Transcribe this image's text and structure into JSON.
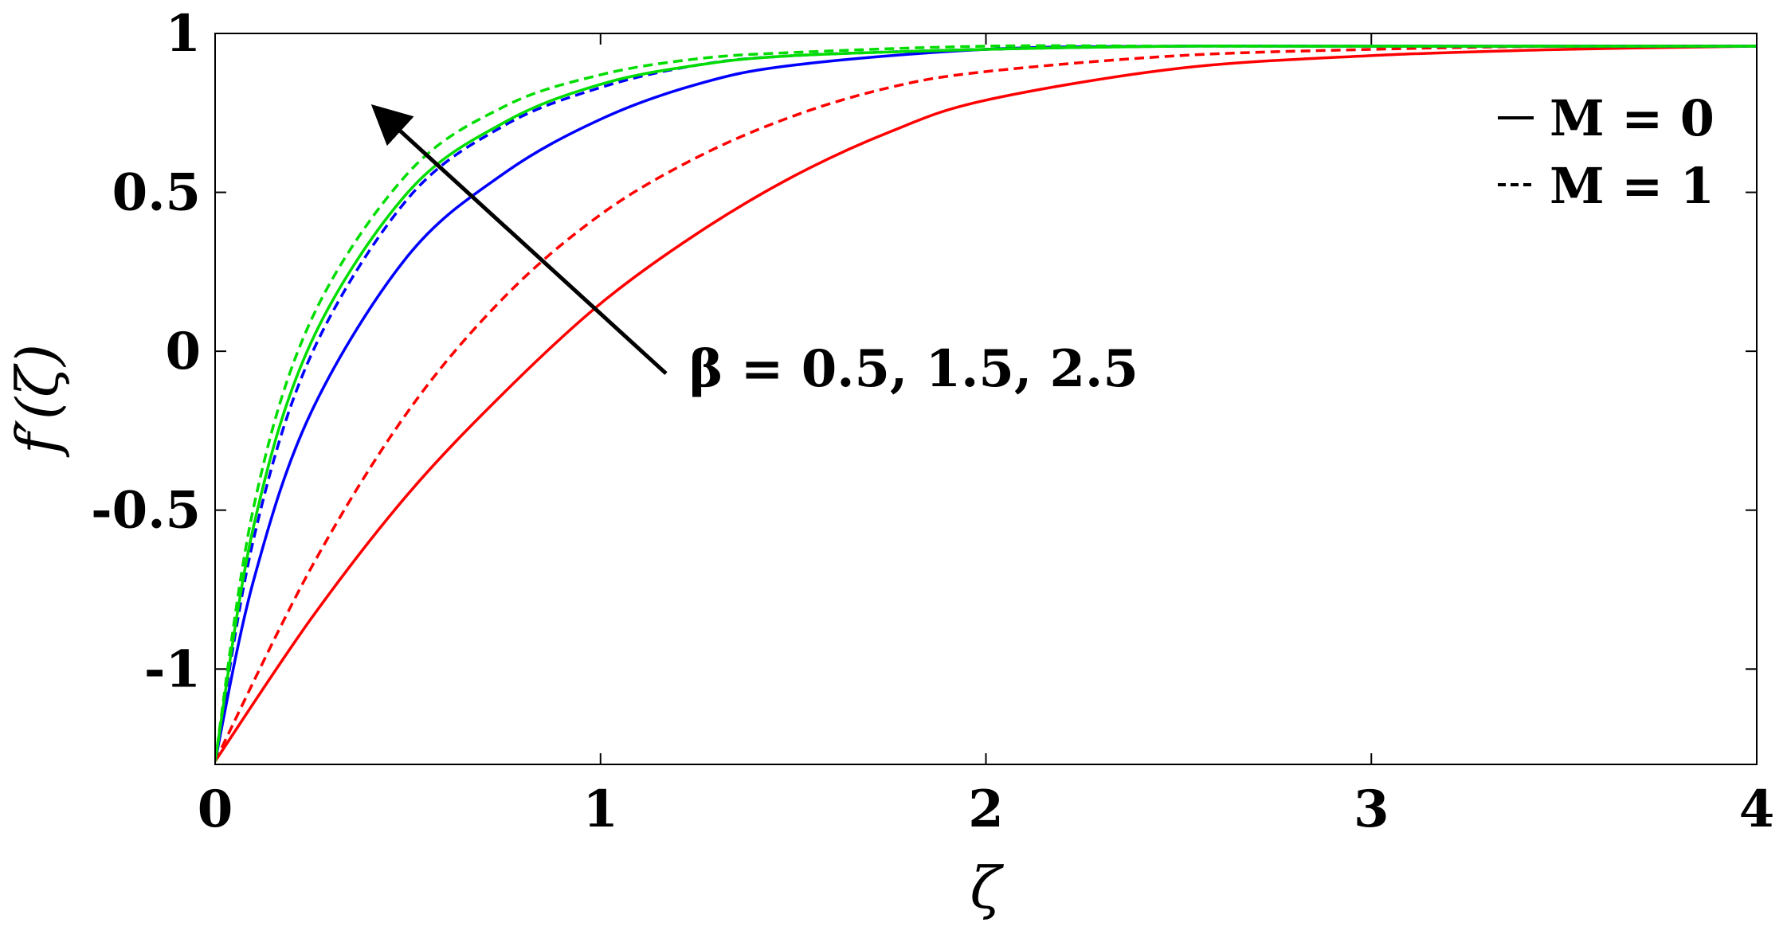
{
  "chart_data": {
    "type": "line",
    "title": "",
    "xlabel": "ζ",
    "ylabel": "f′(ζ)",
    "xlim": [
      0,
      4
    ],
    "ylim": [
      -1.3,
      1
    ],
    "xticks": [
      0,
      1,
      2,
      3,
      4
    ],
    "xtick_labels": [
      "0",
      "1",
      "2",
      "3",
      "4"
    ],
    "yticks": [
      -1,
      -0.5,
      0,
      0.5,
      1
    ],
    "ytick_labels": [
      "-1",
      "-0.5",
      "0",
      "0.5",
      "1"
    ],
    "grid": false,
    "legend": {
      "position": "top-right",
      "entries": [
        {
          "label": "M = 0",
          "style": "solid"
        },
        {
          "label": "M = 1",
          "style": "dashed"
        }
      ]
    },
    "annotation": {
      "text": "β = 0.5, 1.5, 2.5",
      "arrow_from": [
        1.17,
        -0.07
      ],
      "arrow_to": [
        0.42,
        0.76
      ]
    },
    "series": [
      {
        "beta": 0.5,
        "M": 0,
        "color": "#ff0000",
        "style": "solid",
        "x": [
          0,
          0.25,
          0.5,
          0.75,
          1.0,
          1.25,
          1.5,
          1.75,
          2.0,
          2.5,
          3.0,
          3.5,
          4.0
        ],
        "y": [
          -1.29,
          -0.84,
          -0.45,
          -0.13,
          0.15,
          0.37,
          0.55,
          0.69,
          0.79,
          0.89,
          0.93,
          0.95,
          0.96
        ]
      },
      {
        "beta": 0.5,
        "M": 1,
        "color": "#ff0000",
        "style": "dashed",
        "x": [
          0,
          0.25,
          0.5,
          0.75,
          1.0,
          1.25,
          1.5,
          1.75,
          2.0,
          2.5,
          3.0,
          3.5,
          4.0
        ],
        "y": [
          -1.29,
          -0.68,
          -0.19,
          0.17,
          0.43,
          0.61,
          0.74,
          0.83,
          0.88,
          0.93,
          0.95,
          0.96,
          0.96
        ]
      },
      {
        "beta": 1.5,
        "M": 0,
        "color": "#0000ff",
        "style": "solid",
        "x": [
          0,
          0.1,
          0.25,
          0.5,
          0.75,
          1.0,
          1.25,
          1.5,
          2.0,
          2.5,
          3.0,
          3.5,
          4.0
        ],
        "y": [
          -1.29,
          -0.72,
          -0.19,
          0.3,
          0.56,
          0.73,
          0.84,
          0.9,
          0.95,
          0.96,
          0.96,
          0.96,
          0.96
        ]
      },
      {
        "beta": 1.5,
        "M": 1,
        "color": "#0000ff",
        "style": "dashed",
        "x": [
          0,
          0.1,
          0.25,
          0.5,
          0.75,
          1.0,
          1.25,
          1.5,
          2.0,
          2.5,
          3.0,
          3.5,
          4.0
        ],
        "y": [
          -1.29,
          -0.59,
          -0.01,
          0.48,
          0.71,
          0.83,
          0.9,
          0.93,
          0.95,
          0.96,
          0.96,
          0.96,
          0.96
        ]
      },
      {
        "beta": 2.5,
        "M": 0,
        "color": "#00dd00",
        "style": "solid",
        "x": [
          0,
          0.1,
          0.25,
          0.5,
          0.75,
          1.0,
          1.25,
          1.5,
          2.0,
          2.5,
          3.0,
          3.5,
          4.0
        ],
        "y": [
          -1.29,
          -0.55,
          0.03,
          0.5,
          0.72,
          0.84,
          0.9,
          0.93,
          0.95,
          0.96,
          0.96,
          0.96,
          0.96
        ]
      },
      {
        "beta": 2.5,
        "M": 1,
        "color": "#00dd00",
        "style": "dashed",
        "x": [
          0,
          0.1,
          0.25,
          0.5,
          0.75,
          1.0,
          1.25,
          1.5,
          2.0,
          2.5,
          3.0,
          3.5,
          4.0
        ],
        "y": [
          -1.29,
          -0.49,
          0.1,
          0.56,
          0.77,
          0.87,
          0.92,
          0.94,
          0.96,
          0.96,
          0.96,
          0.96,
          0.96
        ]
      }
    ]
  }
}
